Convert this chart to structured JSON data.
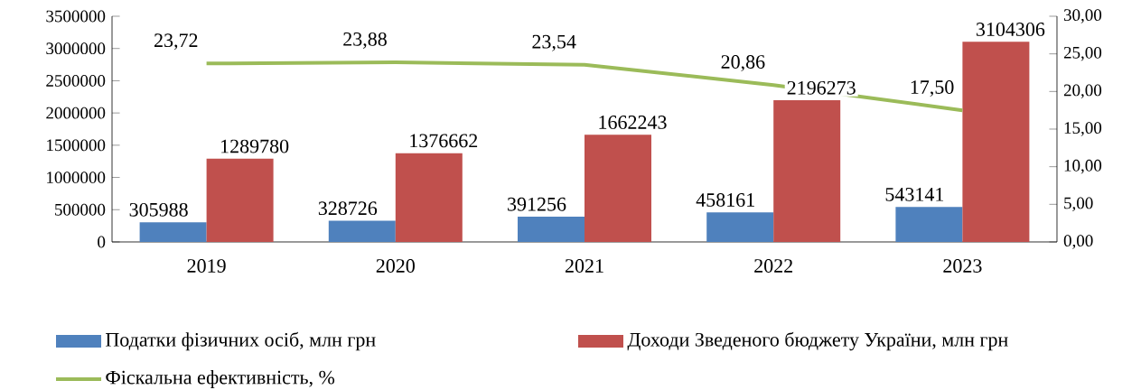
{
  "chart_data": {
    "type": "bar",
    "categories": [
      "2019",
      "2020",
      "2021",
      "2022",
      "2023"
    ],
    "series": [
      {
        "name": "Податки фізичних осіб, млн грн",
        "color": "#4f81bd",
        "values": [
          305988,
          328726,
          391256,
          458161,
          543141
        ],
        "value_labels": [
          "305988",
          "328726",
          "391256",
          "458161",
          "543141"
        ]
      },
      {
        "name": "Доходи Зведеного бюджету України, млн грн",
        "color": "#c0504d",
        "values": [
          1289780,
          1376662,
          1662243,
          2196273,
          3104306
        ],
        "value_labels": [
          "1289780",
          "1376662",
          "1662243",
          "2196273",
          "3104306"
        ]
      },
      {
        "name": "Фіскальна ефективність, %",
        "type": "line",
        "axis": "y2",
        "color": "#9bbb59",
        "values": [
          23.72,
          23.88,
          23.54,
          20.86,
          17.5
        ],
        "value_labels": [
          "23,72",
          "23,88",
          "23,54",
          "20,86",
          "17,50"
        ]
      }
    ],
    "ylim": [
      0,
      3500000
    ],
    "yticks": [
      0,
      500000,
      1000000,
      1500000,
      2000000,
      2500000,
      3000000,
      3500000
    ],
    "y2lim": [
      0,
      30
    ],
    "y2ticks": [
      {
        "value": 0,
        "label": "0,00"
      },
      {
        "value": 5,
        "label": "5,00"
      },
      {
        "value": 10,
        "label": "10,00"
      },
      {
        "value": 15,
        "label": "15,00"
      },
      {
        "value": 20,
        "label": "20,00"
      },
      {
        "value": 25,
        "label": "25,00"
      },
      {
        "value": 30,
        "label": "30,00"
      }
    ],
    "legend": "bottom",
    "grid": false,
    "marker": "none",
    "line_style": "solid"
  }
}
